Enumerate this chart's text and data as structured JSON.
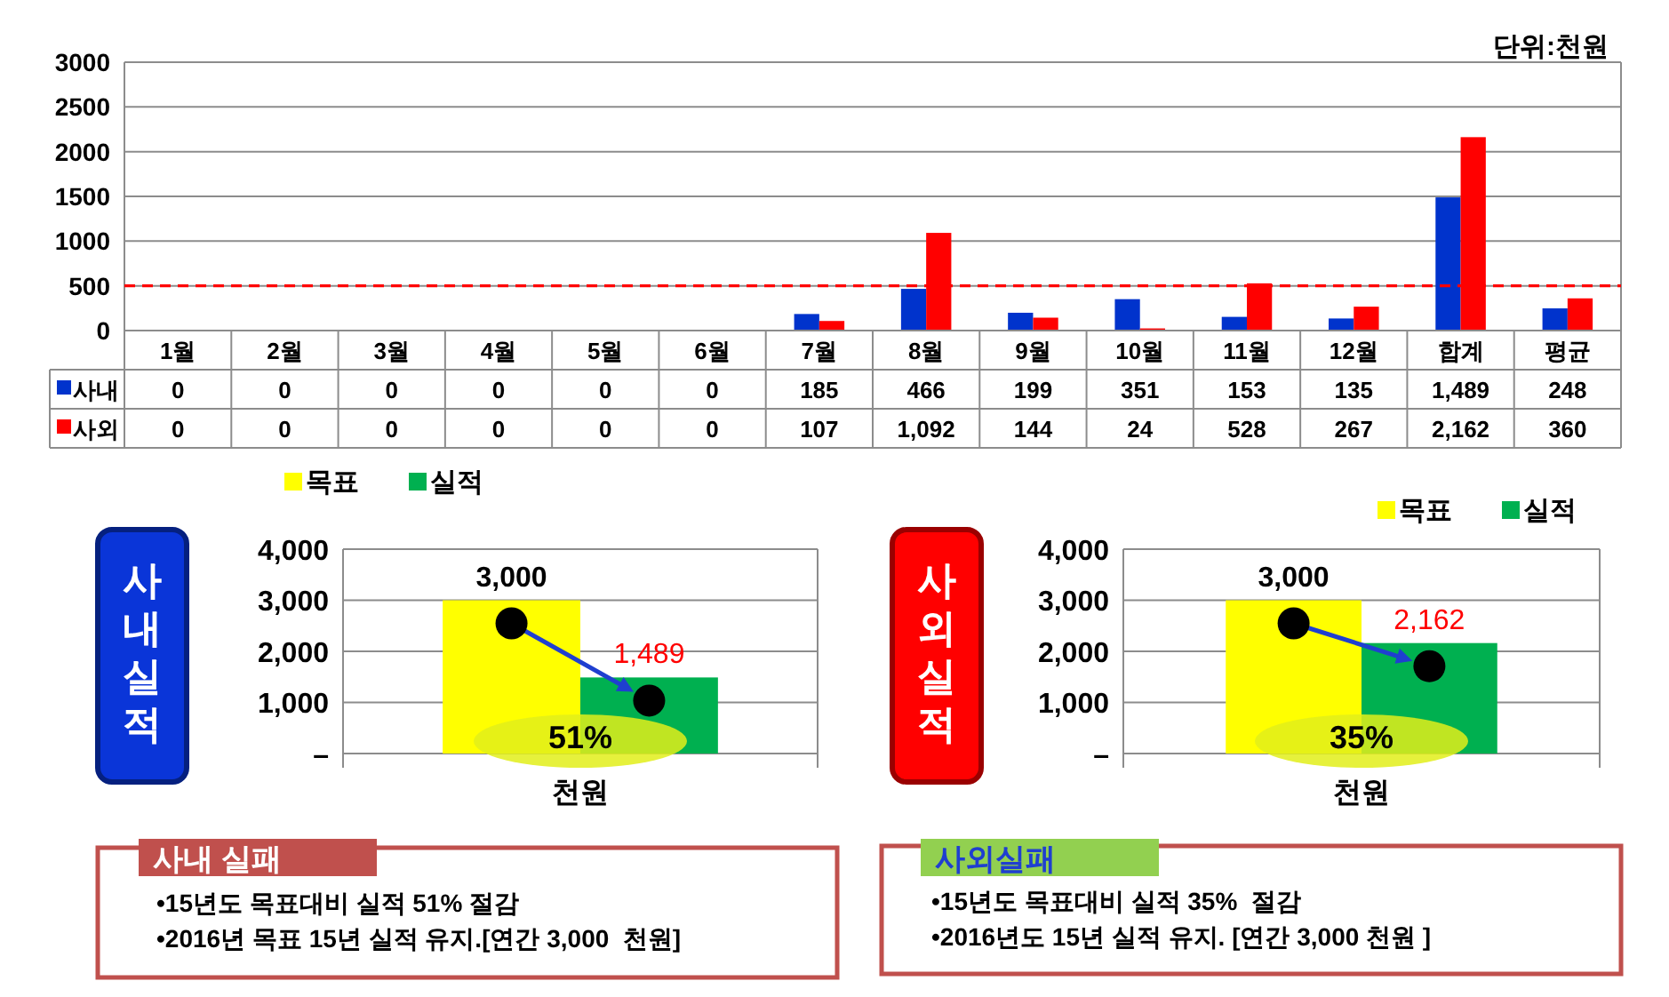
{
  "chart_data": [
    {
      "type": "bar",
      "annotations": [
        "단위:천원"
      ],
      "categories": [
        "1월",
        "2월",
        "3월",
        "4월",
        "5월",
        "6월",
        "7월",
        "8월",
        "9월",
        "10월",
        "11월",
        "12월",
        "합계",
        "평균"
      ],
      "series": [
        {
          "name": "사내",
          "color": "#0033cc",
          "values": [
            0,
            0,
            0,
            0,
            0,
            0,
            185,
            466,
            199,
            351,
            153,
            135,
            1489,
            248
          ],
          "value_labels": [
            "0",
            "0",
            "0",
            "0",
            "0",
            "0",
            "185",
            "466",
            "199",
            "351",
            "153",
            "135",
            "1,489",
            "248"
          ]
        },
        {
          "name": "사외",
          "color": "#ff0000",
          "values": [
            0,
            0,
            0,
            0,
            0,
            0,
            107,
            1092,
            144,
            24,
            528,
            267,
            2162,
            360
          ],
          "value_labels": [
            "0",
            "0",
            "0",
            "0",
            "0",
            "0",
            "107",
            "1,092",
            "144",
            "24",
            "528",
            "267",
            "2,162",
            "360"
          ]
        }
      ],
      "ylim": [
        0,
        3000
      ],
      "yticks": [
        0,
        500,
        1000,
        1500,
        2000,
        2500,
        3000
      ],
      "grid": "y",
      "legend": "bottom",
      "ref_lines": [
        {
          "axis": "y",
          "value": 500,
          "color": "#ff0000",
          "line_style": "dashed"
        }
      ]
    },
    {
      "type": "bar",
      "title": "사내실적",
      "categories": [
        "천원"
      ],
      "series": [
        {
          "name": "목표",
          "color": "#ffff00",
          "values": [
            3000
          ],
          "value_labels": [
            "3,000"
          ]
        },
        {
          "name": "실적",
          "color": "#00b050",
          "values": [
            1489
          ],
          "value_labels": [
            "1,489"
          ]
        }
      ],
      "annotations": [
        "51%"
      ],
      "ylim": [
        0,
        4000
      ],
      "yticks": [
        {
          "value": 0,
          "label": "–"
        },
        {
          "value": 1000,
          "label": "1,000"
        },
        {
          "value": 2000,
          "label": "2,000"
        },
        {
          "value": 3000,
          "label": "3,000"
        },
        {
          "value": 4000,
          "label": "4,000"
        }
      ],
      "grid": "y",
      "legend": "top left"
    },
    {
      "type": "bar",
      "title": "사외실적",
      "categories": [
        "천원"
      ],
      "series": [
        {
          "name": "목표",
          "color": "#ffff00",
          "values": [
            3000
          ],
          "value_labels": [
            "3,000"
          ]
        },
        {
          "name": "실적",
          "color": "#00b050",
          "values": [
            2162
          ],
          "value_labels": [
            "2,162"
          ]
        }
      ],
      "annotations": [
        "35%"
      ],
      "ylim": [
        0,
        4000
      ],
      "yticks": [
        {
          "value": 0,
          "label": "–"
        },
        {
          "value": 1000,
          "label": "1,000"
        },
        {
          "value": 2000,
          "label": "2,000"
        },
        {
          "value": 3000,
          "label": "3,000"
        },
        {
          "value": 4000,
          "label": "4,000"
        }
      ],
      "grid": "y",
      "legend": "top right"
    },
    {
      "type": "other",
      "title": "사내 실패",
      "annotations": [
        "•15년도 목표대비 실적 51% 절감",
        "•2016년 목표 15년 실적 유지.[연간 3,000  천원]"
      ]
    },
    {
      "type": "other",
      "title": "사외실패",
      "annotations": [
        "•15년도 목표대비 실적 35%  절감",
        "•2016년도 15년 실적 유지. [연간 3,000 천원 ]"
      ]
    }
  ]
}
